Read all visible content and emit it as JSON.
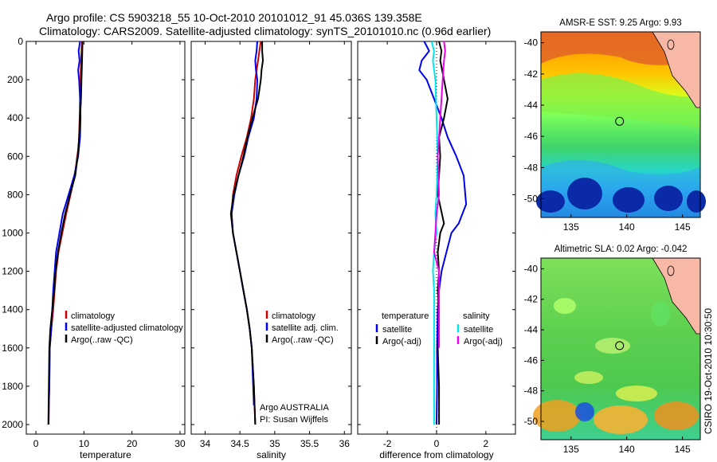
{
  "header": {
    "line1": "Argo profile: CS 5903218_55 10-Oct-2010 20101012_91 45.036S 139.358E",
    "line2": "Climatology: CARS2009. Satellite-adjusted climatology: synTS_20101010.nc (0.96d earlier)"
  },
  "credit": "CSIRO 19-Oct-2010 10:30:50",
  "colors": {
    "climatology": "#cc0000",
    "satellite": "#0000ee",
    "argo": "#000000",
    "salinity_satellite": "#00e5ee",
    "salinity_argo": "#ee00ee"
  },
  "chart_data": [
    {
      "type": "line",
      "xlabel": "temperature",
      "ylabel": "",
      "xlim": [
        -2,
        31
      ],
      "ylim": [
        2050,
        0
      ],
      "xticks": [
        "0",
        "10",
        "20",
        "30"
      ],
      "yticks": [
        "0",
        "200",
        "400",
        "600",
        "800",
        "1000",
        "1200",
        "1400",
        "1600",
        "1800",
        "2000"
      ],
      "legend": {
        "placement": "lower-center",
        "entries": [
          "climatology",
          "satellite-adjusted climatology",
          "Argo(..raw -QC)"
        ]
      },
      "series": [
        {
          "name": "climatology",
          "color": "#cc0000",
          "x": [
            9.6,
            9.5,
            9.4,
            9.3,
            9.2,
            9.1,
            9.0,
            8.9,
            8.6,
            8.1,
            7.2,
            6.3,
            5.5,
            4.7,
            4.2,
            3.9,
            3.6,
            3.2,
            2.9,
            2.8,
            2.7,
            2.65
          ],
          "y": [
            0,
            50,
            100,
            200,
            300,
            400,
            500,
            550,
            600,
            700,
            800,
            900,
            1000,
            1100,
            1200,
            1300,
            1400,
            1500,
            1600,
            1800,
            1900,
            2000
          ]
        },
        {
          "name": "satellite-adjusted climatology",
          "color": "#0000ee",
          "x": [
            9.2,
            8.9,
            9.1,
            8.8,
            9.0,
            9.2,
            9.3,
            9.2,
            8.8,
            8.0,
            6.8,
            5.6,
            4.9,
            4.2,
            3.9,
            3.6,
            3.2,
            2.9,
            2.8,
            2.7,
            2.65
          ],
          "y": [
            0,
            50,
            100,
            150,
            200,
            300,
            400,
            500,
            600,
            700,
            800,
            900,
            1000,
            1100,
            1200,
            1300,
            1500,
            1600,
            1800,
            1900,
            2000
          ]
        },
        {
          "name": "Argo(..raw -QC)",
          "color": "#000000",
          "x": [
            9.7,
            9.6,
            9.5,
            9.4,
            9.2,
            9.0,
            8.7,
            8.2,
            7.1,
            6.1,
            5.3,
            4.6,
            4.1,
            3.8,
            3.4,
            3.0,
            2.8,
            2.7,
            2.6
          ],
          "y": [
            0,
            100,
            200,
            300,
            400,
            500,
            600,
            700,
            800,
            900,
            1000,
            1100,
            1200,
            1300,
            1400,
            1500,
            1600,
            1800,
            2000
          ]
        }
      ]
    },
    {
      "type": "line",
      "xlabel": "salinity",
      "ylabel": "",
      "xlim": [
        33.8,
        36.1
      ],
      "ylim": [
        2050,
        0
      ],
      "xticks": [
        "34",
        "34.5",
        "35",
        "35.5",
        "36"
      ],
      "yticks": [],
      "legend": {
        "placement": "lower-center",
        "entries": [
          "climatology",
          "satellite adj. clim.",
          "Argo(..raw -QC)"
        ]
      },
      "annotations": [
        "Argo AUSTRALIA",
        "PI: Susan Wijffels"
      ],
      "series": [
        {
          "name": "climatology",
          "color": "#cc0000",
          "x": [
            34.8,
            34.78,
            34.76,
            34.74,
            34.72,
            34.7,
            34.66,
            34.6,
            34.52,
            34.45,
            34.4,
            34.38,
            34.4,
            34.45,
            34.5,
            34.55,
            34.6,
            34.64,
            34.67,
            34.7,
            34.72
          ],
          "y": [
            0,
            50,
            100,
            150,
            200,
            300,
            400,
            500,
            600,
            700,
            800,
            900,
            1000,
            1100,
            1200,
            1300,
            1400,
            1500,
            1600,
            1800,
            2000
          ]
        },
        {
          "name": "satellite adj. clim.",
          "color": "#0000ee",
          "x": [
            34.75,
            34.74,
            34.72,
            34.73,
            34.75,
            34.74,
            34.7,
            34.62,
            34.56,
            34.48,
            34.42,
            34.38,
            34.4,
            34.45,
            34.5,
            34.55,
            34.6,
            34.64,
            34.67,
            34.7
          ],
          "y": [
            0,
            50,
            100,
            150,
            200,
            300,
            400,
            500,
            600,
            700,
            800,
            900,
            1000,
            1100,
            1200,
            1300,
            1400,
            1500,
            1600,
            1900
          ]
        },
        {
          "name": "Argo(..raw -QC)",
          "color": "#000000",
          "x": [
            34.82,
            34.82,
            34.83,
            34.81,
            34.8,
            34.76,
            34.68,
            34.61,
            34.55,
            34.48,
            34.41,
            34.37,
            34.4,
            34.45,
            34.5,
            34.55,
            34.6,
            34.64,
            34.67,
            34.7,
            34.72
          ],
          "y": [
            0,
            50,
            100,
            150,
            200,
            300,
            400,
            500,
            600,
            700,
            800,
            900,
            1000,
            1100,
            1200,
            1300,
            1400,
            1500,
            1600,
            1800,
            2000
          ]
        }
      ]
    },
    {
      "type": "line",
      "xlabel": "difference from climatology",
      "ylabel": "",
      "xlim": [
        -3.2,
        3.2
      ],
      "ylim": [
        2050,
        0
      ],
      "xticks": [
        "-2",
        "0",
        "2"
      ],
      "yticks": [],
      "legend": {
        "placement": "lower-center",
        "temperature": {
          "title": "temperature",
          "entries": [
            "satellite",
            "Argo(-adj)"
          ]
        },
        "salinity": {
          "title": "salinity",
          "entries": [
            "satellite",
            "Argo(-adj)"
          ]
        }
      },
      "series": [
        {
          "name": "satellite",
          "group": "temperature",
          "color": "#0000ee",
          "x": [
            -0.5,
            -0.3,
            -0.6,
            -0.7,
            -0.4,
            -0.1,
            0.2,
            0.45,
            0.8,
            1.1,
            1.2,
            0.9,
            0.6,
            0.4,
            0.2,
            0.1,
            0.05,
            0.02,
            0.02,
            0.0
          ],
          "y": [
            0,
            50,
            100,
            150,
            200,
            300,
            400,
            500,
            600,
            700,
            850,
            950,
            1000,
            1100,
            1200,
            1300,
            1400,
            1600,
            1800,
            2000
          ]
        },
        {
          "name": "Argo(-adj)",
          "group": "temperature",
          "color": "#000000",
          "x": [
            0.1,
            0.2,
            0.15,
            0.3,
            0.45,
            0.3,
            0.1,
            0.15,
            0.1,
            0.05,
            0.3,
            0.15,
            0.05,
            0.1,
            0.05,
            0.1,
            0.05,
            0.1,
            0.1
          ],
          "y": [
            0,
            50,
            100,
            200,
            300,
            400,
            500,
            600,
            700,
            800,
            950,
            1000,
            1100,
            1200,
            1300,
            1400,
            1600,
            1800,
            2000
          ]
        },
        {
          "name": "satellite",
          "group": "salinity",
          "color": "#00e5ee",
          "x": [
            -0.2,
            -0.1,
            -0.15,
            -0.05,
            0.0,
            0.05,
            0.0,
            -0.05,
            0.0,
            -0.1,
            -0.15,
            -0.1,
            -0.1,
            -0.1,
            -0.1,
            -0.1
          ],
          "y": [
            0,
            50,
            100,
            200,
            400,
            600,
            800,
            900,
            1000,
            1100,
            1200,
            1300,
            1400,
            1600,
            1800,
            2000
          ]
        },
        {
          "name": "Argo(-adj)",
          "group": "salinity",
          "color": "#ee00ee",
          "x": [
            0.3,
            0.35,
            0.3,
            0.25,
            0.15,
            0.05,
            0.1,
            0.0,
            -0.05,
            -0.1,
            0.1,
            0.1,
            0.1
          ],
          "y": [
            0,
            50,
            100,
            200,
            400,
            600,
            800,
            900,
            1000,
            1100,
            1200,
            1400,
            1600
          ]
        }
      ]
    },
    {
      "type": "heatmap",
      "title": "AMSR-E SST: 9.25 Argo: 9.93",
      "xlim": [
        132.3,
        146.6
      ],
      "ylim": [
        -51.2,
        -39.3
      ],
      "xticks": [
        "135",
        "140",
        "145"
      ],
      "yticks": [
        "-40",
        "-42",
        "-44",
        "-46",
        "-48",
        "-50"
      ],
      "marker": {
        "lon": 139.358,
        "lat": -45.036
      }
    },
    {
      "type": "heatmap",
      "title": "Altimetric SLA: 0.02 Argo: -0.042",
      "xlim": [
        132.3,
        146.6
      ],
      "ylim": [
        -51.2,
        -39.3
      ],
      "xticks": [
        "135",
        "140",
        "145"
      ],
      "yticks": [
        "-40",
        "-42",
        "-44",
        "-46",
        "-48",
        "-50"
      ],
      "marker": {
        "lon": 139.358,
        "lat": -45.036
      }
    }
  ]
}
